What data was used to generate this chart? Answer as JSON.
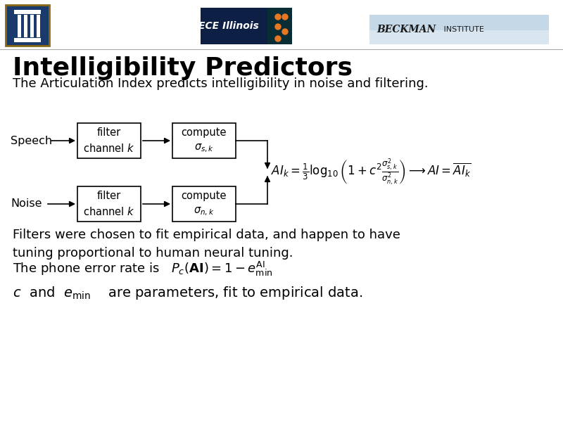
{
  "title": "Intelligibility Predictors",
  "subtitle": "The Articulation Index predicts intelligibility in noise and filtering.",
  "title_fontsize": 26,
  "subtitle_fontsize": 13,
  "body_fontsize": 13,
  "bg_color": "#ffffff",
  "text_color": "#000000",
  "filter_label_top": "filter\nchannel $k$",
  "filter_label_bot": "filter\nchannel $k$",
  "compute_label_top": "compute\n$\\sigma_{s,k}$",
  "compute_label_bot": "compute\n$\\sigma_{n,k}$",
  "formula": "$AI_k = \\frac{1}{3}\\log_{10}\\left(1 + c^2 \\frac{\\sigma_{s,k}^2}{\\sigma_{n,k}^2}\\right) \\longrightarrow AI = \\overline{AI_k}$",
  "text1": "Filters were chosen to fit empirical data, and happen to have\ntuning proportional to human neural tuning.",
  "text2": "The phone error rate is   $P_c(\\mathbf{AI}) = 1 - e_{\\mathrm{min}}^{\\mathrm{AI}}$",
  "text3": "$c$  and  $e_{\\mathrm{min}}$    are parameters, fit to empirical data."
}
